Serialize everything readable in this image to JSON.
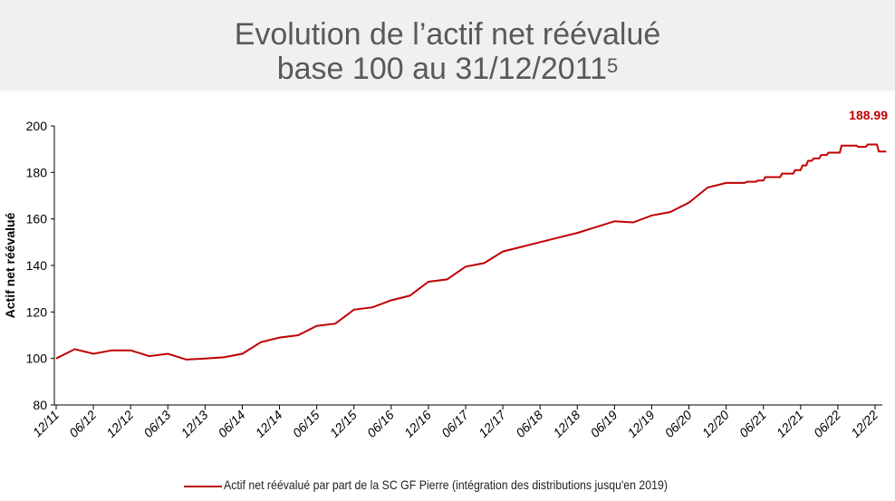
{
  "header": {
    "title_line1": "Evolution de l’actif net réévalué",
    "title_line2": "base 100 au 31/12/2011",
    "title_superscript": "5",
    "background_color": "#f0f0f0",
    "text_color": "#595959"
  },
  "chart_data": {
    "type": "line",
    "ylabel": "Actif net réévalué",
    "xlabel": "",
    "ylim": [
      80,
      200
    ],
    "yticks": [
      80,
      100,
      120,
      140,
      160,
      180,
      200
    ],
    "x_tick_labels": [
      "12/11",
      "06/12",
      "12/12",
      "06/13",
      "12/13",
      "06/14",
      "12/14",
      "06/15",
      "12/15",
      "06/16",
      "12/16",
      "06/17",
      "12/17",
      "06/18",
      "12/18",
      "06/19",
      "12/19",
      "06/20",
      "12/20",
      "06/21",
      "12/21",
      "06/22",
      "12/22"
    ],
    "xlim": [
      0,
      22
    ],
    "grid": false,
    "legend_position": "bottom",
    "final_value_label": "188.99",
    "series": [
      {
        "name": "Actif net réévalué par part de la SC GF Pierre (intégration des distributions jusqu'en 2019)",
        "color": "#c00000",
        "x": [
          0,
          0.5,
          1.0,
          1.5,
          2.0,
          2.5,
          3.0,
          3.5,
          4.0,
          4.5,
          5.0,
          5.5,
          6.0,
          6.5,
          7.0,
          7.5,
          8.0,
          8.5,
          9.0,
          9.5,
          10.0,
          10.5,
          11.0,
          11.5,
          12.0,
          12.5,
          13.0,
          13.5,
          14.0,
          14.5,
          15.0,
          15.5,
          16.0,
          16.5,
          17.0,
          17.5,
          18.0,
          18.5,
          18.55,
          18.8,
          18.85,
          19.0,
          19.05,
          19.45,
          19.5,
          19.8,
          19.85,
          20.0,
          20.05,
          20.15,
          20.2,
          20.3,
          20.35,
          20.5,
          20.55,
          20.7,
          20.75,
          21.05,
          21.1,
          21.5,
          21.55,
          21.75,
          21.8,
          22.05,
          22.1,
          22.3
        ],
        "values": [
          100,
          104,
          102,
          103.5,
          103.5,
          101,
          102,
          99.5,
          100,
          100.5,
          102,
          107,
          109,
          110,
          114,
          115,
          121,
          122,
          125,
          127,
          133,
          134,
          139.5,
          141,
          146,
          148,
          150,
          152,
          154,
          156.5,
          159,
          158.5,
          161.5,
          163,
          167,
          173.5,
          175.5,
          175.5,
          176,
          176,
          176.5,
          176.5,
          178,
          178,
          179.5,
          179.5,
          181,
          181,
          183,
          183,
          185,
          185,
          186,
          186,
          187.5,
          187.5,
          188.5,
          188.5,
          191.5,
          191.5,
          191,
          191,
          192,
          192,
          189,
          189
        ]
      }
    ]
  }
}
